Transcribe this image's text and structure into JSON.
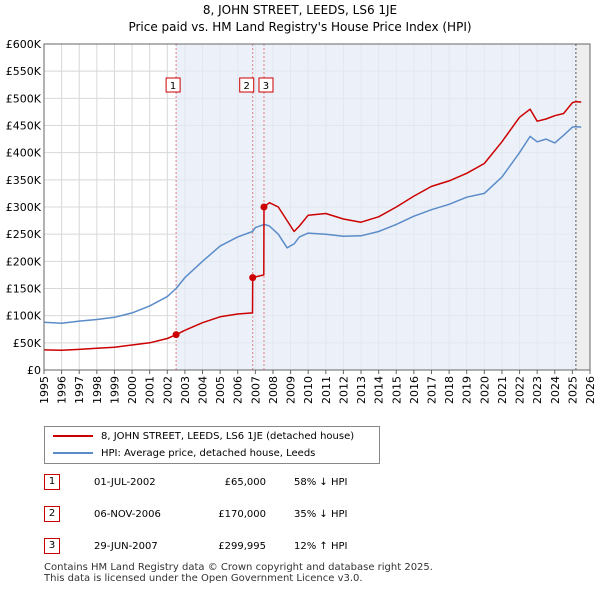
{
  "chart_data": {
    "type": "line",
    "title": "8, JOHN STREET, LEEDS, LS6 1JE",
    "subtitle": "Price paid vs. HM Land Registry's House Price Index (HPI)",
    "xlim": [
      1995,
      2026
    ],
    "ylim": [
      0,
      600000
    ],
    "x_ticks": [
      "1995",
      "1996",
      "1997",
      "1998",
      "1999",
      "2000",
      "2001",
      "2002",
      "2003",
      "2004",
      "2005",
      "2006",
      "2007",
      "2008",
      "2009",
      "2010",
      "2011",
      "2012",
      "2013",
      "2014",
      "2015",
      "2016",
      "2017",
      "2018",
      "2019",
      "2020",
      "2021",
      "2022",
      "2023",
      "2024",
      "2025",
      "2026"
    ],
    "y_ticks": [
      {
        "value": 0,
        "label": "£0"
      },
      {
        "value": 50000,
        "label": "£50K"
      },
      {
        "value": 100000,
        "label": "£100K"
      },
      {
        "value": 150000,
        "label": "£150K"
      },
      {
        "value": 200000,
        "label": "£200K"
      },
      {
        "value": 250000,
        "label": "£250K"
      },
      {
        "value": 300000,
        "label": "£300K"
      },
      {
        "value": 350000,
        "label": "£350K"
      },
      {
        "value": 400000,
        "label": "£400K"
      },
      {
        "value": 450000,
        "label": "£450K"
      },
      {
        "value": 500000,
        "label": "£500K"
      },
      {
        "value": 550000,
        "label": "£550K"
      },
      {
        "value": 600000,
        "label": "£600K"
      }
    ],
    "shade_start": 2002.5,
    "forecast_start": 2025.2,
    "series": [
      {
        "name": "8, JOHN STREET, LEEDS, LS6 1JE (detached house)",
        "color": "#cc0000",
        "x": [
          1995,
          1996,
          1997,
          1998,
          1999,
          2000,
          2001,
          2002,
          2002.5,
          2003,
          2004,
          2005,
          2006,
          2006.84,
          2006.85,
          2007.48,
          2007.49,
          2007.8,
          2008.3,
          2008.8,
          2009.2,
          2009.5,
          2010,
          2011,
          2012,
          2013,
          2014,
          2015,
          2016,
          2017,
          2018,
          2019,
          2020,
          2021,
          2022,
          2022.6,
          2023,
          2023.5,
          2024,
          2024.5,
          2025,
          2025.2,
          2025.5
        ],
        "values": [
          37000,
          36500,
          38000,
          40000,
          42000,
          46000,
          50000,
          58000,
          65000,
          73000,
          87000,
          98000,
          103000,
          105000,
          170000,
          175000,
          299995,
          308000,
          300000,
          275000,
          255000,
          265000,
          285000,
          288000,
          278000,
          272000,
          282000,
          300000,
          320000,
          338000,
          348000,
          362000,
          380000,
          420000,
          465000,
          480000,
          458000,
          462000,
          468000,
          472000,
          492000,
          494000,
          493000
        ]
      },
      {
        "name": "HPI: Average price, detached house, Leeds",
        "color": "#5b8cc8",
        "x": [
          1995,
          1996,
          1997,
          1998,
          1999,
          2000,
          2001,
          2002,
          2002.5,
          2003,
          2004,
          2005,
          2006,
          2006.84,
          2007,
          2007.5,
          2007.8,
          2008.3,
          2008.8,
          2009.2,
          2009.5,
          2010,
          2011,
          2012,
          2013,
          2014,
          2015,
          2016,
          2017,
          2018,
          2019,
          2020,
          2021,
          2022,
          2022.6,
          2023,
          2023.5,
          2024,
          2024.5,
          2025,
          2025.2,
          2025.5
        ],
        "values": [
          88000,
          86000,
          90000,
          93000,
          97000,
          105000,
          118000,
          135000,
          150000,
          170000,
          200000,
          228000,
          245000,
          255000,
          262000,
          268000,
          265000,
          250000,
          225000,
          232000,
          245000,
          252000,
          250000,
          246000,
          247000,
          255000,
          268000,
          283000,
          295000,
          305000,
          318000,
          325000,
          355000,
          400000,
          430000,
          420000,
          425000,
          418000,
          432000,
          447000,
          448000,
          447000
        ]
      }
    ],
    "markers": [
      {
        "label": "1",
        "x": 2002.5,
        "value": 65000
      },
      {
        "label": "2",
        "x": 2006.85,
        "value": 170000
      },
      {
        "label": "3",
        "x": 2007.49,
        "value": 299995
      }
    ]
  },
  "legend": {
    "property_label": "8, JOHN STREET, LEEDS, LS6 1JE (detached house)",
    "hpi_label": "HPI: Average price, detached house, Leeds",
    "property_color": "#cc0000",
    "hpi_color": "#5b8cc8"
  },
  "transactions": [
    {
      "num": "1",
      "date": "01-JUL-2002",
      "price": "£65,000",
      "hpi": "58% ↓ HPI"
    },
    {
      "num": "2",
      "date": "06-NOV-2006",
      "price": "£170,000",
      "hpi": "35% ↓ HPI"
    },
    {
      "num": "3",
      "date": "29-JUN-2007",
      "price": "£299,995",
      "hpi": "12% ↑ HPI"
    }
  ],
  "footer": {
    "line1": "Contains HM Land Registry data © Crown copyright and database right 2025.",
    "line2": "This data is licensed under the Open Government Licence v3.0."
  }
}
